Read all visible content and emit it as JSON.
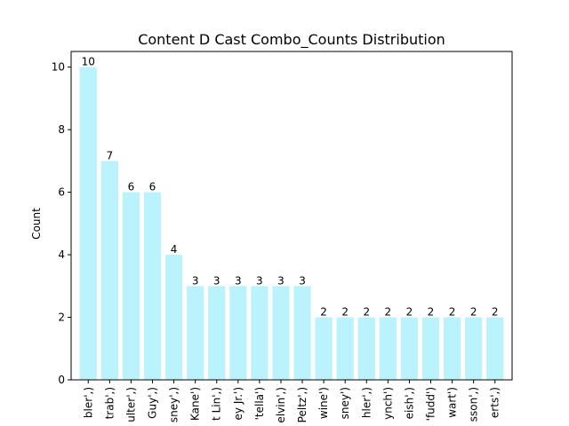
{
  "chart_data": {
    "type": "bar",
    "title": "Content D Cast Combo_Counts Distribution",
    "xlabel": "",
    "ylabel": "Count",
    "ylim": [
      0,
      10.5
    ],
    "yticks": [
      0,
      2,
      4,
      6,
      8,
      10
    ],
    "grid": false,
    "bar_color": "#bbf3fc",
    "categories": [
      "bler',)",
      "trab',)",
      "ulter',)",
      "Guy',)",
      "sney',)",
      "Kane')",
      "t Lin',)",
      "ey Jr.')",
      "'tella')",
      "elvin',)",
      "Peltz',)",
      "wine')",
      "sney')",
      "hler',)",
      "ynch')",
      "eish',)",
      "'fudd')",
      "wart')",
      "sson',)",
      "erts',)"
    ],
    "values": [
      10,
      7,
      6,
      6,
      4,
      3,
      3,
      3,
      3,
      3,
      3,
      2,
      2,
      2,
      2,
      2,
      2,
      2,
      2,
      2
    ]
  }
}
